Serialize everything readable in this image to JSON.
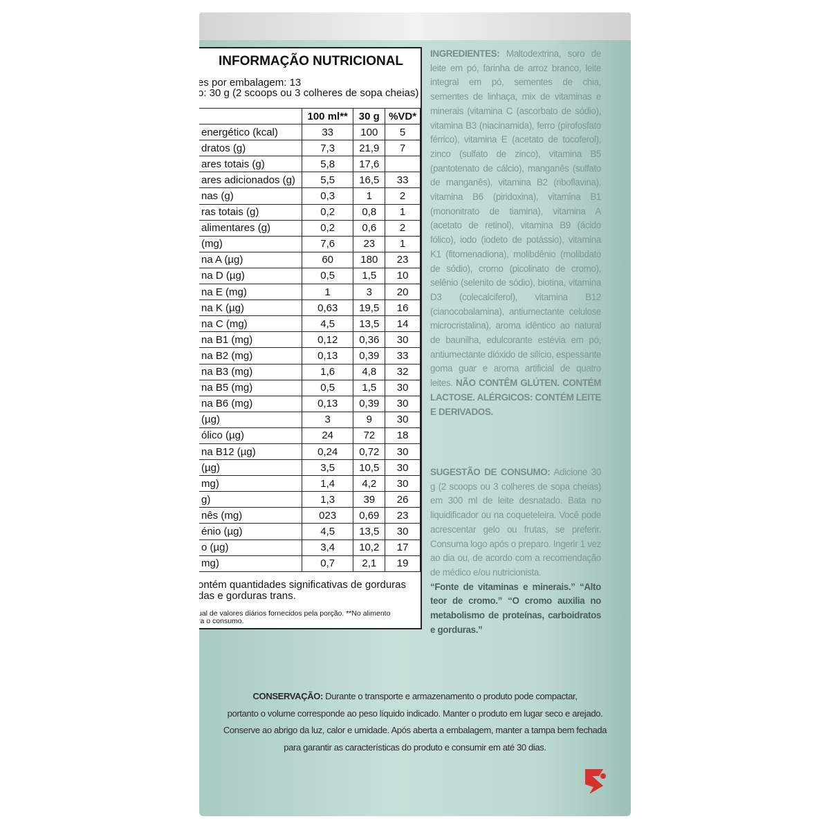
{
  "label": {
    "title": "INFORMAÇÃO NUTRICIONAL",
    "servings": "es por embalagem: 13",
    "portion": "o: 30 g (2 scoops ou 3 colheres de sopa cheias)",
    "columns": [
      "100 ml**",
      "30 g",
      "%VD*"
    ],
    "rows": [
      [
        "energético (kcal)",
        "33",
        "100",
        "5"
      ],
      [
        "dratos (g)",
        "7,3",
        "21,9",
        "7"
      ],
      [
        "ares totais (g)",
        "5,8",
        "17,6",
        null
      ],
      [
        "ares adicionados (g)",
        "5,5",
        "16,5",
        "33"
      ],
      [
        "nas (g)",
        "0,3",
        "1",
        "2"
      ],
      [
        "ras totais (g)",
        "0,2",
        "0,8",
        "1"
      ],
      [
        "alimentares (g)",
        "0,2",
        "0,6",
        "2"
      ],
      [
        "(mg)",
        "7,6",
        "23",
        "1"
      ],
      [
        "na A (µg)",
        "60",
        "180",
        "23"
      ],
      [
        "na D (µg)",
        "0,5",
        "1,5",
        "10"
      ],
      [
        "na E (mg)",
        "1",
        "3",
        "20"
      ],
      [
        "na K (µg)",
        "0,63",
        "19,5",
        "16"
      ],
      [
        "na C (mg)",
        "4,5",
        "13,5",
        "14"
      ],
      [
        "na B1 (mg)",
        "0,12",
        "0,36",
        "30"
      ],
      [
        "na B2 (mg)",
        "0,13",
        "0,39",
        "33"
      ],
      [
        "na B3 (mg)",
        "1,6",
        "4,8",
        "32"
      ],
      [
        "na B5 (mg)",
        "0,5",
        "1,5",
        "30"
      ],
      [
        "na B6 (mg)",
        "0,13",
        "0,39",
        "30"
      ],
      [
        "(µg)",
        "3",
        "9",
        "30"
      ],
      [
        "ólico (µg)",
        "24",
        "72",
        "18"
      ],
      [
        "na B12 (µg)",
        "0,24",
        "0,72",
        "30"
      ],
      [
        "(µg)",
        "3,5",
        "10,5",
        "30"
      ],
      [
        "mg)",
        "1,4",
        "4,2",
        "30"
      ],
      [
        "g)",
        "1,3",
        "39",
        "26"
      ],
      [
        "nês (mg)",
        "023",
        "0,69",
        "23"
      ],
      [
        "énio (µg)",
        "4,5",
        "13,5",
        "30"
      ],
      [
        "o (µg)",
        "3,4",
        "10,2",
        "17"
      ],
      [
        "mg)",
        "0,7",
        "2,1",
        "19"
      ]
    ],
    "note_lines": [
      "ontém quantidades significativas de gorduras",
      "das e gorduras trans."
    ],
    "footnote_lines": [
      "ual de valores diários fornecidos pela porção. **No alimento",
      "ra o consumo."
    ]
  },
  "ingredients": {
    "heading": "INGREDIENTES:",
    "text": " Maltodextrina, soro de leite em pó, farinha de arroz branco, leite integral em pó, sementes de chia, sementes de linhaça, mix de vitaminas e minerais (vitamina C (ascorbato de sódio), vitamina B3 (niacinamida), ferro (pirofosfato férrico), vitamina E (acetato de tocoferol), zinco (sulfato de zinco), vitamina B5 (pantotenato de cálcio), manganês (sulfato de manganês), vitamina B2 (riboflavina), vitamina B6 (piridoxina), vitamina B1 (mononitrato de tiamina), vitamina A (acetato de retinol), vitamina B9 (ácido fólico), iodo (iodeto de potássio), vitamina K1 (fitomenadiona), molibdênio (molibdato de sódio), cromo (picolinato de cromo), selênio (selenito de sódio), biotina, vitamina D3 (colecalciferol), vitamina B12 (cianocobalamina), antiumectante celulose microcristalina), aroma idêntico ao natural de baunilha, edulcorante estévia em pó, antiumectante dióxido de silício, espessante goma guar e aroma artificial de quatro leites. ",
    "warning": "NÃO CONTÊM GLÚTEN. CONTÉM LACTOSE. ALÉRGICOS: CONTÉM LEITE E DERIVADOS."
  },
  "suggestion": {
    "heading": "SUGESTÃO DE CONSUMO:",
    "text": " Adicione 30 g (2 scoops ou 3 colheres de sopa cheias) em 300 ml de leite desnatado. Bata no liquidificador ou na coqueteleira. Você pode acrescentar gelo ou frutas, se preferir. Consuma logo após o preparo. Ingerir 1 vez ao dia ou, de acordo com a recomendação de médico e/ou nutricionista.",
    "claims": "“Fonte de vitaminas e minerais.” “Alto teor de cromo.” “O cromo auxilia no metabolismo de proteínas, carboidratos e gorduras.”"
  },
  "conservation": {
    "heading": "CONSERVAÇÃO:",
    "lines": [
      " Durante o transporte e armazenamento o produto pode compactar,",
      "portanto o volume corresponde ao peso líquido indicado. Manter o produto em lugar seco e arejado.",
      "Conserve ao abrigo da luz, calor e umidade. Após aberta a embalagem, manter a tampa bem fechada",
      "para garantir as características do produto e consumir em até 30 dias."
    ]
  }
}
